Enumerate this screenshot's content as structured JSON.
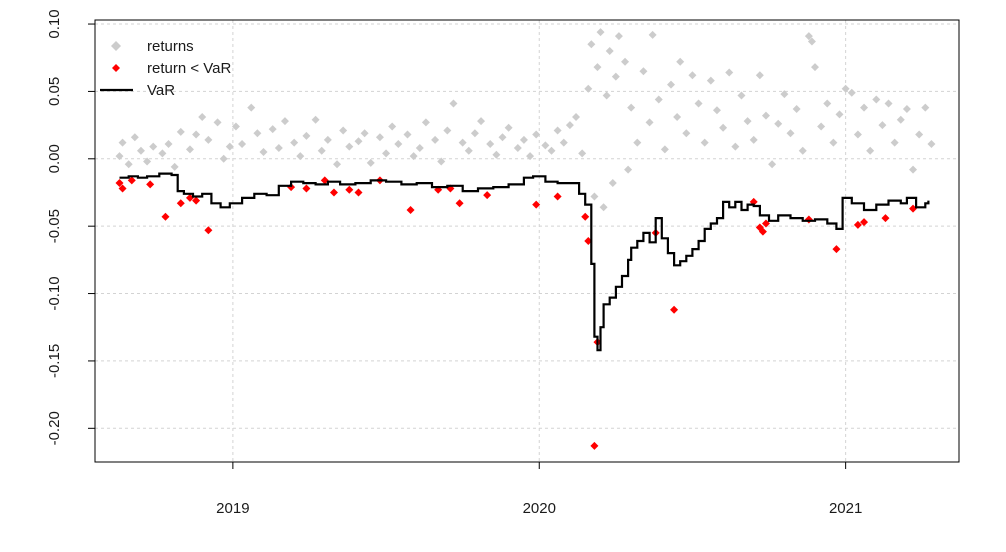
{
  "chart_data": {
    "type": "scatter",
    "title": "",
    "xlabel": "",
    "ylabel": "",
    "xlim": [
      2018.55,
      2021.37
    ],
    "ylim": [
      -0.225,
      0.103
    ],
    "x_ticks": [
      {
        "value": 2019,
        "label": "2019"
      },
      {
        "value": 2020,
        "label": "2020"
      },
      {
        "value": 2021,
        "label": "2021"
      }
    ],
    "y_ticks": [
      {
        "value": 0.1,
        "label": "0.10"
      },
      {
        "value": 0.05,
        "label": "0.05"
      },
      {
        "value": 0.0,
        "label": "0.00"
      },
      {
        "value": -0.05,
        "label": "-0.05"
      },
      {
        "value": -0.1,
        "label": "-0.10"
      },
      {
        "value": -0.15,
        "label": "-0.15"
      },
      {
        "value": -0.2,
        "label": "-0.20"
      }
    ],
    "grid": true,
    "legend": {
      "position": "top-left",
      "entries": [
        {
          "label": "returns",
          "color": "#cccccc",
          "marker": "diamond"
        },
        {
          "label": "return < VaR",
          "color": "#ff0000",
          "marker": "diamond"
        },
        {
          "label": "VaR",
          "color": "#000000",
          "marker": "line"
        }
      ]
    },
    "series": [
      {
        "name": "returns",
        "kind": "points",
        "color": "#cccccc",
        "points": [
          [
            2018.63,
            0.002
          ],
          [
            2018.64,
            0.012
          ],
          [
            2018.66,
            -0.004
          ],
          [
            2018.68,
            0.016
          ],
          [
            2018.7,
            0.006
          ],
          [
            2018.72,
            -0.002
          ],
          [
            2018.74,
            0.009
          ],
          [
            2018.77,
            0.004
          ],
          [
            2018.79,
            0.011
          ],
          [
            2018.81,
            -0.006
          ],
          [
            2018.83,
            0.02
          ],
          [
            2018.86,
            0.007
          ],
          [
            2018.88,
            0.018
          ],
          [
            2018.9,
            0.031
          ],
          [
            2018.92,
            0.014
          ],
          [
            2018.95,
            0.027
          ],
          [
            2018.97,
            0.0
          ],
          [
            2018.99,
            0.009
          ],
          [
            2019.01,
            0.024
          ],
          [
            2019.03,
            0.011
          ],
          [
            2019.06,
            0.038
          ],
          [
            2019.08,
            0.019
          ],
          [
            2019.1,
            0.005
          ],
          [
            2019.13,
            0.022
          ],
          [
            2019.15,
            0.008
          ],
          [
            2019.17,
            0.028
          ],
          [
            2019.2,
            0.012
          ],
          [
            2019.22,
            0.002
          ],
          [
            2019.24,
            0.017
          ],
          [
            2019.27,
            0.029
          ],
          [
            2019.29,
            0.006
          ],
          [
            2019.31,
            0.014
          ],
          [
            2019.34,
            -0.004
          ],
          [
            2019.36,
            0.021
          ],
          [
            2019.38,
            0.009
          ],
          [
            2019.41,
            0.013
          ],
          [
            2019.43,
            0.019
          ],
          [
            2019.45,
            -0.003
          ],
          [
            2019.48,
            0.016
          ],
          [
            2019.5,
            0.004
          ],
          [
            2019.52,
            0.024
          ],
          [
            2019.54,
            0.011
          ],
          [
            2019.57,
            0.018
          ],
          [
            2019.59,
            0.002
          ],
          [
            2019.61,
            0.008
          ],
          [
            2019.63,
            0.027
          ],
          [
            2019.66,
            0.014
          ],
          [
            2019.68,
            -0.002
          ],
          [
            2019.7,
            0.021
          ],
          [
            2019.72,
            0.041
          ],
          [
            2019.75,
            0.012
          ],
          [
            2019.77,
            0.006
          ],
          [
            2019.79,
            0.019
          ],
          [
            2019.81,
            0.028
          ],
          [
            2019.84,
            0.011
          ],
          [
            2019.86,
            0.003
          ],
          [
            2019.88,
            0.016
          ],
          [
            2019.9,
            0.023
          ],
          [
            2019.93,
            0.008
          ],
          [
            2019.95,
            0.014
          ],
          [
            2019.97,
            0.002
          ],
          [
            2019.99,
            0.018
          ],
          [
            2020.02,
            0.01
          ],
          [
            2020.04,
            0.006
          ],
          [
            2020.06,
            0.021
          ],
          [
            2020.08,
            0.012
          ],
          [
            2020.1,
            0.025
          ],
          [
            2020.12,
            0.031
          ],
          [
            2020.14,
            0.004
          ],
          [
            2020.16,
            0.052
          ],
          [
            2020.17,
            0.085
          ],
          [
            2020.18,
            -0.028
          ],
          [
            2020.19,
            0.068
          ],
          [
            2020.2,
            0.094
          ],
          [
            2020.21,
            -0.036
          ],
          [
            2020.22,
            0.047
          ],
          [
            2020.23,
            0.08
          ],
          [
            2020.24,
            -0.018
          ],
          [
            2020.25,
            0.061
          ],
          [
            2020.26,
            0.091
          ],
          [
            2020.28,
            0.072
          ],
          [
            2020.29,
            -0.008
          ],
          [
            2020.3,
            0.038
          ],
          [
            2020.32,
            0.012
          ],
          [
            2020.34,
            0.065
          ],
          [
            2020.36,
            0.027
          ],
          [
            2020.37,
            0.092
          ],
          [
            2020.39,
            0.044
          ],
          [
            2020.41,
            0.007
          ],
          [
            2020.43,
            0.055
          ],
          [
            2020.45,
            0.031
          ],
          [
            2020.46,
            0.072
          ],
          [
            2020.48,
            0.019
          ],
          [
            2020.5,
            0.062
          ],
          [
            2020.52,
            0.041
          ],
          [
            2020.54,
            0.012
          ],
          [
            2020.56,
            0.058
          ],
          [
            2020.58,
            0.036
          ],
          [
            2020.6,
            0.023
          ],
          [
            2020.62,
            0.064
          ],
          [
            2020.64,
            0.009
          ],
          [
            2020.66,
            0.047
          ],
          [
            2020.68,
            0.028
          ],
          [
            2020.7,
            0.014
          ],
          [
            2020.72,
            0.062
          ],
          [
            2020.74,
            0.032
          ],
          [
            2020.76,
            -0.004
          ],
          [
            2020.78,
            0.026
          ],
          [
            2020.8,
            0.048
          ],
          [
            2020.82,
            0.019
          ],
          [
            2020.84,
            0.037
          ],
          [
            2020.86,
            0.006
          ],
          [
            2020.88,
            0.091
          ],
          [
            2020.89,
            0.087
          ],
          [
            2020.9,
            0.068
          ],
          [
            2020.92,
            0.024
          ],
          [
            2020.94,
            0.041
          ],
          [
            2020.96,
            0.012
          ],
          [
            2020.98,
            0.033
          ],
          [
            2021.0,
            0.052
          ],
          [
            2021.02,
            0.049
          ],
          [
            2021.04,
            0.018
          ],
          [
            2021.06,
            0.038
          ],
          [
            2021.08,
            0.006
          ],
          [
            2021.1,
            0.044
          ],
          [
            2021.12,
            0.025
          ],
          [
            2021.14,
            0.041
          ],
          [
            2021.16,
            0.012
          ],
          [
            2021.18,
            0.029
          ],
          [
            2021.2,
            0.037
          ],
          [
            2021.22,
            -0.008
          ],
          [
            2021.24,
            0.018
          ],
          [
            2021.26,
            0.038
          ],
          [
            2021.28,
            0.011
          ]
        ]
      },
      {
        "name": "return < VaR",
        "kind": "points",
        "color": "#ff0000",
        "points": [
          [
            2018.63,
            -0.018
          ],
          [
            2018.64,
            -0.022
          ],
          [
            2018.67,
            -0.016
          ],
          [
            2018.73,
            -0.019
          ],
          [
            2018.78,
            -0.043
          ],
          [
            2018.83,
            -0.033
          ],
          [
            2018.86,
            -0.029
          ],
          [
            2018.88,
            -0.031
          ],
          [
            2018.92,
            -0.053
          ],
          [
            2019.19,
            -0.021
          ],
          [
            2019.24,
            -0.022
          ],
          [
            2019.3,
            -0.016
          ],
          [
            2019.33,
            -0.025
          ],
          [
            2019.38,
            -0.023
          ],
          [
            2019.41,
            -0.025
          ],
          [
            2019.48,
            -0.016
          ],
          [
            2019.58,
            -0.038
          ],
          [
            2019.67,
            -0.023
          ],
          [
            2019.71,
            -0.022
          ],
          [
            2019.74,
            -0.033
          ],
          [
            2019.83,
            -0.027
          ],
          [
            2019.99,
            -0.034
          ],
          [
            2020.06,
            -0.028
          ],
          [
            2020.15,
            -0.043
          ],
          [
            2020.16,
            -0.061
          ],
          [
            2020.19,
            -0.136
          ],
          [
            2020.18,
            -0.213
          ],
          [
            2020.38,
            -0.055
          ],
          [
            2020.44,
            -0.112
          ],
          [
            2020.7,
            -0.032
          ],
          [
            2020.72,
            -0.051
          ],
          [
            2020.73,
            -0.054
          ],
          [
            2020.74,
            -0.048
          ],
          [
            2020.88,
            -0.045
          ],
          [
            2020.97,
            -0.067
          ],
          [
            2021.04,
            -0.049
          ],
          [
            2021.06,
            -0.047
          ],
          [
            2021.13,
            -0.044
          ],
          [
            2021.22,
            -0.037
          ]
        ]
      },
      {
        "name": "VaR",
        "kind": "line",
        "color": "#000000",
        "points": [
          [
            2018.63,
            -0.014
          ],
          [
            2018.66,
            -0.013
          ],
          [
            2018.69,
            -0.014
          ],
          [
            2018.72,
            -0.013
          ],
          [
            2018.76,
            -0.011
          ],
          [
            2018.8,
            -0.012
          ],
          [
            2018.82,
            -0.024
          ],
          [
            2018.84,
            -0.026
          ],
          [
            2018.87,
            -0.028
          ],
          [
            2018.9,
            -0.026
          ],
          [
            2018.93,
            -0.033
          ],
          [
            2018.96,
            -0.036
          ],
          [
            2018.99,
            -0.033
          ],
          [
            2019.03,
            -0.029
          ],
          [
            2019.07,
            -0.026
          ],
          [
            2019.11,
            -0.027
          ],
          [
            2019.15,
            -0.02
          ],
          [
            2019.19,
            -0.017
          ],
          [
            2019.23,
            -0.018
          ],
          [
            2019.27,
            -0.019
          ],
          [
            2019.31,
            -0.017
          ],
          [
            2019.35,
            -0.019
          ],
          [
            2019.4,
            -0.018
          ],
          [
            2019.45,
            -0.016
          ],
          [
            2019.5,
            -0.017
          ],
          [
            2019.55,
            -0.019
          ],
          [
            2019.6,
            -0.018
          ],
          [
            2019.65,
            -0.021
          ],
          [
            2019.7,
            -0.02
          ],
          [
            2019.75,
            -0.024
          ],
          [
            2019.8,
            -0.022
          ],
          [
            2019.85,
            -0.021
          ],
          [
            2019.9,
            -0.019
          ],
          [
            2019.95,
            -0.014
          ],
          [
            2019.98,
            -0.013
          ],
          [
            2020.02,
            -0.017
          ],
          [
            2020.06,
            -0.018
          ],
          [
            2020.1,
            -0.018
          ],
          [
            2020.13,
            -0.026
          ],
          [
            2020.15,
            -0.034
          ],
          [
            2020.17,
            -0.078
          ],
          [
            2020.18,
            -0.132
          ],
          [
            2020.19,
            -0.142
          ],
          [
            2020.2,
            -0.125
          ],
          [
            2020.21,
            -0.108
          ],
          [
            2020.23,
            -0.103
          ],
          [
            2020.25,
            -0.095
          ],
          [
            2020.27,
            -0.087
          ],
          [
            2020.29,
            -0.075
          ],
          [
            2020.3,
            -0.066
          ],
          [
            2020.32,
            -0.061
          ],
          [
            2020.34,
            -0.055
          ],
          [
            2020.36,
            -0.062
          ],
          [
            2020.38,
            -0.044
          ],
          [
            2020.4,
            -0.059
          ],
          [
            2020.42,
            -0.07
          ],
          [
            2020.44,
            -0.079
          ],
          [
            2020.46,
            -0.076
          ],
          [
            2020.48,
            -0.072
          ],
          [
            2020.5,
            -0.067
          ],
          [
            2020.52,
            -0.061
          ],
          [
            2020.54,
            -0.052
          ],
          [
            2020.56,
            -0.048
          ],
          [
            2020.58,
            -0.044
          ],
          [
            2020.6,
            -0.032
          ],
          [
            2020.62,
            -0.036
          ],
          [
            2020.64,
            -0.032
          ],
          [
            2020.66,
            -0.038
          ],
          [
            2020.68,
            -0.034
          ],
          [
            2020.7,
            -0.035
          ],
          [
            2020.72,
            -0.042
          ],
          [
            2020.75,
            -0.046
          ],
          [
            2020.78,
            -0.042
          ],
          [
            2020.82,
            -0.044
          ],
          [
            2020.86,
            -0.046
          ],
          [
            2020.9,
            -0.045
          ],
          [
            2020.94,
            -0.048
          ],
          [
            2020.97,
            -0.052
          ],
          [
            2020.99,
            -0.029
          ],
          [
            2021.02,
            -0.033
          ],
          [
            2021.06,
            -0.038
          ],
          [
            2021.1,
            -0.034
          ],
          [
            2021.14,
            -0.031
          ],
          [
            2021.18,
            -0.033
          ],
          [
            2021.2,
            -0.029
          ],
          [
            2021.23,
            -0.036
          ],
          [
            2021.26,
            -0.033
          ],
          [
            2021.27,
            -0.031
          ]
        ]
      }
    ]
  }
}
